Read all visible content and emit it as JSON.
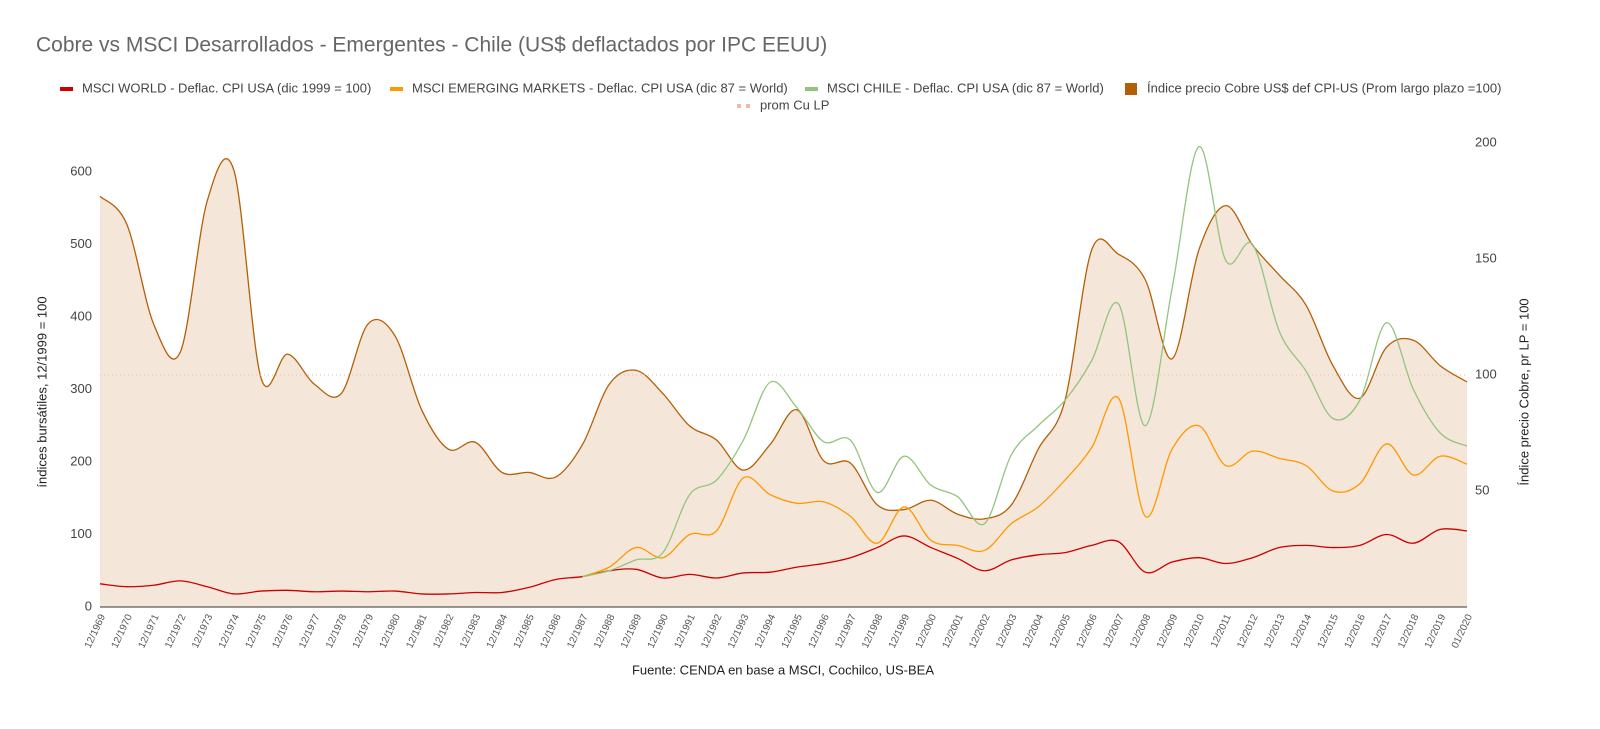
{
  "chart_data": {
    "type": "line",
    "title": "Cobre vs MSCI Desarrollados - Emergentes - Chile (US$ deflactados por IPC EEUU)",
    "ylabel": "índices bursátiles, 12/1999 = 100",
    "y2label": "Índice precio Cobre, pr LP = 100",
    "source": "Fuente: CENDA en base a MSCI, Cochilco, US-BEA",
    "categories": [
      "12/1969",
      "12/1970",
      "12/1971",
      "12/1972",
      "12/1973",
      "12/1974",
      "12/1975",
      "12/1976",
      "12/1977",
      "12/1978",
      "12/1979",
      "12/1980",
      "12/1981",
      "12/1982",
      "12/1983",
      "12/1984",
      "12/1985",
      "12/1986",
      "12/1987",
      "12/1988",
      "12/1989",
      "12/1990",
      "12/1991",
      "12/1992",
      "12/1993",
      "12/1994",
      "12/1995",
      "12/1996",
      "12/1997",
      "12/1998",
      "12/1999",
      "12/2000",
      "12/2001",
      "12/2002",
      "12/2003",
      "12/2004",
      "12/2005",
      "12/2006",
      "12/2007",
      "12/2008",
      "12/2009",
      "12/2010",
      "12/2011",
      "12/2012",
      "12/2013",
      "12/2014",
      "12/2015",
      "12/2016",
      "12/2017",
      "12/2018",
      "12/2019",
      "01/2020"
    ],
    "ylim": [
      0,
      640
    ],
    "yticks": [
      0,
      100,
      200,
      300,
      400,
      500,
      600
    ],
    "y2lim": [
      0,
      200
    ],
    "y2ticks": [
      50,
      100,
      150,
      200
    ],
    "grid": false,
    "legend": "top",
    "series": [
      {
        "name": "MSCI WORLD - Deflac. CPI USA (dic 1999 = 100)",
        "color": "#cc0000",
        "axis": "y",
        "values": [
          32,
          28,
          30,
          36,
          28,
          18,
          22,
          23,
          21,
          22,
          21,
          22,
          18,
          18,
          20,
          20,
          27,
          38,
          42,
          50,
          52,
          40,
          45,
          40,
          47,
          48,
          55,
          60,
          68,
          82,
          98,
          82,
          67,
          50,
          65,
          72,
          75,
          85,
          90,
          48,
          62,
          68,
          60,
          68,
          82,
          85,
          82,
          85,
          100,
          88,
          107,
          105
        ]
      },
      {
        "name": "MSCI EMERGING MARKETS - Deflac. CPI USA (dic 87 = World)",
        "color": "#ff9900",
        "axis": "y",
        "values": [
          null,
          null,
          null,
          null,
          null,
          null,
          null,
          null,
          null,
          null,
          null,
          null,
          null,
          null,
          null,
          null,
          null,
          null,
          42,
          55,
          82,
          68,
          100,
          105,
          178,
          155,
          143,
          145,
          125,
          88,
          138,
          92,
          85,
          78,
          115,
          138,
          175,
          220,
          288,
          125,
          218,
          250,
          195,
          215,
          205,
          195,
          160,
          170,
          225,
          182,
          208,
          197
        ]
      },
      {
        "name": "MSCI CHILE - Deflac. CPI USA (dic 87 = World)",
        "color": "#93c47d",
        "axis": "y",
        "values": [
          null,
          null,
          null,
          null,
          null,
          null,
          null,
          null,
          null,
          null,
          null,
          null,
          null,
          null,
          null,
          null,
          null,
          null,
          42,
          50,
          65,
          75,
          155,
          175,
          230,
          310,
          275,
          228,
          230,
          158,
          208,
          168,
          152,
          115,
          210,
          250,
          285,
          340,
          418,
          250,
          440,
          635,
          478,
          500,
          380,
          325,
          260,
          285,
          392,
          300,
          240,
          222
        ]
      },
      {
        "name": "Índice precio Cobre US$ def CPI-US (Prom largo plazo =100)",
        "color": "#b45f06",
        "fill": "#f5e6da",
        "axis": "y2",
        "area": true,
        "values": [
          177,
          165,
          122,
          110,
          175,
          188,
          99,
          109,
          96,
          92,
          122,
          117,
          85,
          68,
          71,
          58,
          58,
          56,
          70,
          96,
          102,
          92,
          78,
          72,
          59,
          70,
          85,
          63,
          62,
          44,
          42,
          46,
          40,
          38,
          44,
          68,
          89,
          154,
          152,
          141,
          107,
          154,
          173,
          156,
          143,
          130,
          104,
          90,
          112,
          115,
          104,
          97
        ]
      }
    ],
    "reference_line": {
      "name": "prom Cu LP",
      "color": "#f4b6a6",
      "value": 100,
      "axis": "y2"
    }
  }
}
